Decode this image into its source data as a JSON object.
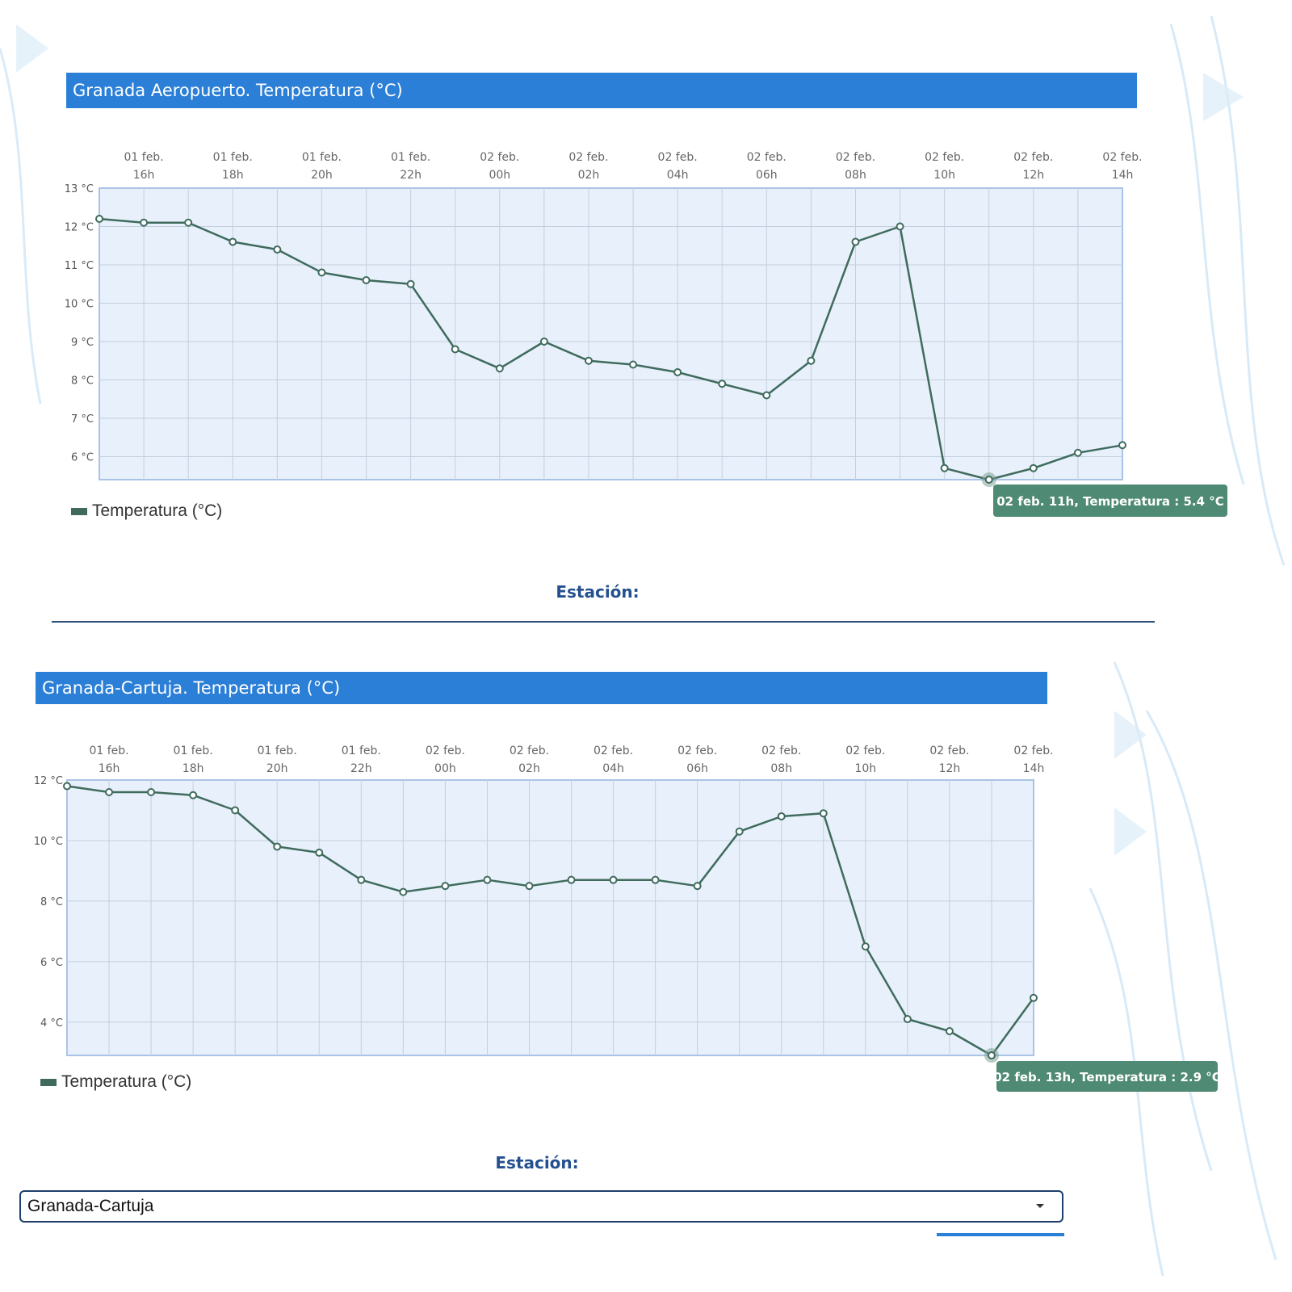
{
  "colors": {
    "title_bar": "#2b7fd6",
    "line": "#3f6b5d",
    "plot_bg": "#e8f0fb",
    "tooltip_bg": "#4f8a74",
    "station_label": "#24508f"
  },
  "chart_data": [
    {
      "type": "line",
      "title": "Granada Aeropuerto. Temperatura (°C)",
      "x_tick_labels": [
        [
          "01 feb.",
          "16h"
        ],
        [
          "01 feb.",
          "18h"
        ],
        [
          "01 feb.",
          "20h"
        ],
        [
          "01 feb.",
          "22h"
        ],
        [
          "02 feb.",
          "00h"
        ],
        [
          "02 feb.",
          "02h"
        ],
        [
          "02 feb.",
          "04h"
        ],
        [
          "02 feb.",
          "06h"
        ],
        [
          "02 feb.",
          "08h"
        ],
        [
          "02 feb.",
          "10h"
        ],
        [
          "02 feb.",
          "12h"
        ],
        [
          "02 feb.",
          "14h"
        ]
      ],
      "x": [
        "01 feb. 15h",
        "01 feb. 16h",
        "01 feb. 17h",
        "01 feb. 18h",
        "01 feb. 19h",
        "01 feb. 20h",
        "01 feb. 21h",
        "01 feb. 22h",
        "01 feb. 23h",
        "02 feb. 00h",
        "02 feb. 01h",
        "02 feb. 02h",
        "02 feb. 03h",
        "02 feb. 04h",
        "02 feb. 05h",
        "02 feb. 06h",
        "02 feb. 07h",
        "02 feb. 08h",
        "02 feb. 09h",
        "02 feb. 10h",
        "02 feb. 11h",
        "02 feb. 12h",
        "02 feb. 13h",
        "02 feb. 14h"
      ],
      "series": [
        {
          "name": "Temperatura (°C)",
          "values": [
            12.2,
            12.1,
            12.1,
            11.6,
            11.4,
            10.8,
            10.6,
            10.5,
            8.8,
            8.3,
            9.0,
            8.5,
            8.4,
            8.2,
            7.9,
            7.6,
            8.5,
            11.6,
            12.0,
            5.7,
            5.4,
            5.7,
            6.1,
            6.3
          ]
        }
      ],
      "ylim": [
        5.4,
        13
      ],
      "y_ticks": [
        13,
        12,
        11,
        10,
        9,
        8,
        7,
        6
      ],
      "y_tick_labels": [
        "13 °C",
        "12 °C",
        "11 °C",
        "10 °C",
        "9 °C",
        "8 °C",
        "7 °C",
        "6 °C"
      ],
      "grid": true,
      "legend": "bottom-left",
      "tooltip": {
        "index": 20,
        "text": "02 feb. 11h, Temperatura : 5.4 °C"
      }
    },
    {
      "type": "line",
      "title": "Granada-Cartuja. Temperatura (°C)",
      "x_tick_labels": [
        [
          "01 feb.",
          "16h"
        ],
        [
          "01 feb.",
          "18h"
        ],
        [
          "01 feb.",
          "20h"
        ],
        [
          "01 feb.",
          "22h"
        ],
        [
          "02 feb.",
          "00h"
        ],
        [
          "02 feb.",
          "02h"
        ],
        [
          "02 feb.",
          "04h"
        ],
        [
          "02 feb.",
          "06h"
        ],
        [
          "02 feb.",
          "08h"
        ],
        [
          "02 feb.",
          "10h"
        ],
        [
          "02 feb.",
          "12h"
        ],
        [
          "02 feb.",
          "14h"
        ]
      ],
      "x": [
        "01 feb. 15h",
        "01 feb. 16h",
        "01 feb. 17h",
        "01 feb. 18h",
        "01 feb. 19h",
        "01 feb. 20h",
        "01 feb. 21h",
        "01 feb. 22h",
        "01 feb. 23h",
        "02 feb. 00h",
        "02 feb. 01h",
        "02 feb. 02h",
        "02 feb. 03h",
        "02 feb. 04h",
        "02 feb. 05h",
        "02 feb. 06h",
        "02 feb. 07h",
        "02 feb. 08h",
        "02 feb. 09h",
        "02 feb. 10h",
        "02 feb. 11h",
        "02 feb. 12h",
        "02 feb. 13h",
        "02 feb. 14h"
      ],
      "series": [
        {
          "name": "Temperatura (°C)",
          "values": [
            11.8,
            11.6,
            11.6,
            11.5,
            11.0,
            9.8,
            9.6,
            8.7,
            8.3,
            8.5,
            8.7,
            8.5,
            8.7,
            8.7,
            8.7,
            8.5,
            10.3,
            10.8,
            10.9,
            6.5,
            4.1,
            3.7,
            2.9,
            4.8
          ]
        }
      ],
      "ylim": [
        2.9,
        12
      ],
      "y_ticks": [
        12,
        10,
        8,
        6,
        4
      ],
      "y_tick_labels": [
        "12 °C",
        "10 °C",
        "8 °C",
        "6 °C",
        "4 °C"
      ],
      "grid": true,
      "legend": "bottom-left",
      "tooltip": {
        "index": 22,
        "text": "02 feb. 13h, Temperatura : 2.9 °C"
      }
    }
  ],
  "legend_label": "Temperatura (°C)",
  "station_label": "Estación:",
  "station_select": {
    "value": "Granada-Cartuja"
  }
}
